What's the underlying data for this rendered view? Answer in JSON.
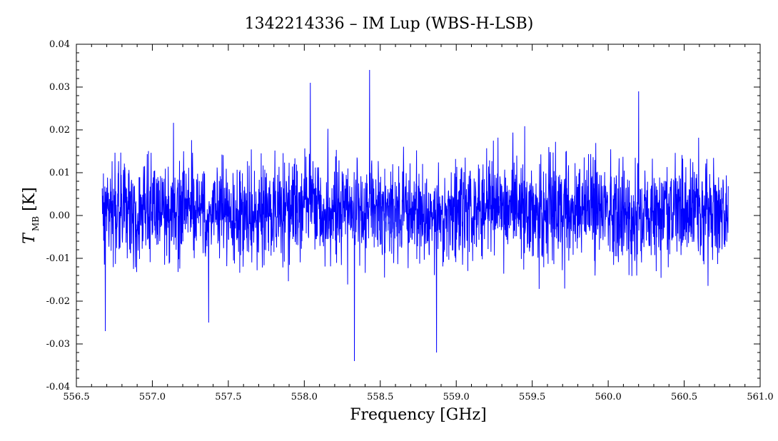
{
  "chart_data": {
    "type": "line",
    "title": "1342214336 – IM Lup (WBS-H-LSB)",
    "xlabel": "Frequency [GHz]",
    "ylabel": {
      "symbol": "T",
      "subscript": "MB",
      "unit": "[K]"
    },
    "xlim": [
      556.5,
      561.0
    ],
    "ylim": [
      -0.04,
      0.04
    ],
    "x_ticks": [
      "556.5",
      "557.0",
      "557.5",
      "558.0",
      "558.5",
      "559.0",
      "559.5",
      "560.0",
      "560.5",
      "561.0"
    ],
    "y_ticks": [
      "-0.04",
      "-0.03",
      "-0.02",
      "-0.01",
      "0.00",
      "0.01",
      "0.02",
      "0.03",
      "0.04"
    ],
    "grid": false,
    "legend": "none",
    "series": [
      {
        "color": "#0000ff",
        "style": "noise spectrum",
        "x_range": [
          556.67,
          560.79
        ],
        "mean": 0.001,
        "rms": 0.006,
        "features": [
          {
            "x": 556.69,
            "y": -0.027
          },
          {
            "x": 557.37,
            "y": -0.025
          },
          {
            "x": 558.04,
            "y": 0.031
          },
          {
            "x": 558.33,
            "y": -0.034
          },
          {
            "x": 558.43,
            "y": 0.034
          },
          {
            "x": 558.87,
            "y": -0.032
          },
          {
            "x": 560.2,
            "y": 0.029
          }
        ]
      }
    ]
  },
  "colors": {
    "trace": "#0000ff",
    "axes": "#000000",
    "background": "#ffffff"
  }
}
